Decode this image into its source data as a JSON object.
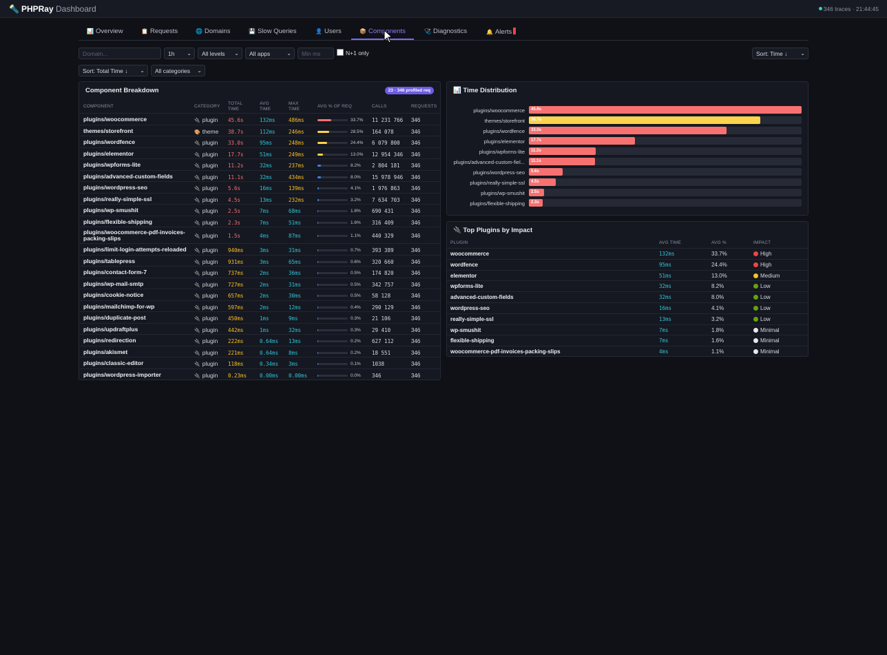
{
  "app": {
    "title": "PHPRay",
    "subtitle": "Dashboard",
    "status": "346 traces · 21:44:45"
  },
  "tabs": [
    {
      "icon": "📊",
      "label": "Overview"
    },
    {
      "icon": "📋",
      "label": "Requests"
    },
    {
      "icon": "🌐",
      "label": "Domains"
    },
    {
      "icon": "💾",
      "label": "Slow Queries"
    },
    {
      "icon": "👤",
      "label": "Users"
    },
    {
      "icon": "📦",
      "label": "Components",
      "active": true
    },
    {
      "icon": "🩺",
      "label": "Diagnostics"
    },
    {
      "icon": "🔔",
      "label": "Alerts"
    }
  ],
  "filters": {
    "domain_placeholder": "Domain...",
    "range": "1h",
    "level": "All levels",
    "apps": "All apps",
    "min_ms_placeholder": "Min ms",
    "n1_label": "N+1 only",
    "sort_time": "Sort: Time ↓",
    "sort_total": "Sort: Total Time ↓",
    "categories": "All categories"
  },
  "breakdown": {
    "title": "Component Breakdown",
    "badge": "23 · 346 profiled req",
    "headers": [
      "COMPONENT",
      "CATEGORY",
      "TOTAL TIME",
      "AVG TIME",
      "MAX TIME",
      "AVG % OF REQ",
      "CALLS",
      "REQUESTS"
    ],
    "rows": [
      {
        "name": "plugins/woocommerce",
        "cat_icon": "🔌",
        "category": "plugin",
        "total": "45.6s",
        "avg": "132ms",
        "max": "486ms",
        "pct": "33.7%",
        "pct_value": 33.7,
        "calls": "11 231 766",
        "requests": "346"
      },
      {
        "name": "themes/storefront",
        "cat_icon": "🎨",
        "category": "theme",
        "total": "38.7s",
        "avg": "112ms",
        "max": "246ms",
        "pct": "28.5%",
        "pct_value": 28.5,
        "calls": "164 078",
        "requests": "346"
      },
      {
        "name": "plugins/wordfence",
        "cat_icon": "🔌",
        "category": "plugin",
        "total": "33.0s",
        "avg": "95ms",
        "max": "248ms",
        "pct": "24.4%",
        "pct_value": 24.4,
        "calls": "6 079 800",
        "requests": "346"
      },
      {
        "name": "plugins/elementor",
        "cat_icon": "🔌",
        "category": "plugin",
        "total": "17.7s",
        "avg": "51ms",
        "max": "249ms",
        "pct": "13.0%",
        "pct_value": 13.0,
        "calls": "12 954 346",
        "requests": "346"
      },
      {
        "name": "plugins/wpforms-lite",
        "cat_icon": "🔌",
        "category": "plugin",
        "total": "11.2s",
        "avg": "32ms",
        "max": "237ms",
        "pct": "8.2%",
        "pct_value": 8.2,
        "calls": "2 804 181",
        "requests": "346"
      },
      {
        "name": "plugins/advanced-custom-fields",
        "cat_icon": "🔌",
        "category": "plugin",
        "total": "11.1s",
        "avg": "32ms",
        "max": "434ms",
        "pct": "8.0%",
        "pct_value": 8.0,
        "calls": "15 978 946",
        "requests": "346"
      },
      {
        "name": "plugins/wordpress-seo",
        "cat_icon": "🔌",
        "category": "plugin",
        "total": "5.6s",
        "avg": "16ms",
        "max": "139ms",
        "pct": "4.1%",
        "pct_value": 4.1,
        "calls": "1 976 863",
        "requests": "346"
      },
      {
        "name": "plugins/really-simple-ssl",
        "cat_icon": "🔌",
        "category": "plugin",
        "total": "4.5s",
        "avg": "13ms",
        "max": "232ms",
        "pct": "3.2%",
        "pct_value": 3.2,
        "calls": "7 634 703",
        "requests": "346"
      },
      {
        "name": "plugins/wp-smushit",
        "cat_icon": "🔌",
        "category": "plugin",
        "total": "2.5s",
        "avg": "7ms",
        "max": "68ms",
        "pct": "1.8%",
        "pct_value": 1.8,
        "calls": "690 431",
        "requests": "346"
      },
      {
        "name": "plugins/flexible-shipping",
        "cat_icon": "🔌",
        "category": "plugin",
        "total": "2.3s",
        "avg": "7ms",
        "max": "51ms",
        "pct": "1.6%",
        "pct_value": 1.6,
        "calls": "316 409",
        "requests": "346"
      },
      {
        "name": "plugins/woocommerce-pdf-invoices-packing-slips",
        "cat_icon": "🔌",
        "category": "plugin",
        "total": "1.5s",
        "avg": "4ms",
        "max": "87ms",
        "pct": "1.1%",
        "pct_value": 1.1,
        "calls": "440 329",
        "requests": "346"
      },
      {
        "name": "plugins/limit-login-attempts-reloaded",
        "cat_icon": "🔌",
        "category": "plugin",
        "total": "940ms",
        "avg": "3ms",
        "max": "31ms",
        "pct": "0.7%",
        "pct_value": 0.7,
        "calls": "393 389",
        "requests": "346"
      },
      {
        "name": "plugins/tablepress",
        "cat_icon": "🔌",
        "category": "plugin",
        "total": "931ms",
        "avg": "3ms",
        "max": "65ms",
        "pct": "0.6%",
        "pct_value": 0.6,
        "calls": "320 660",
        "requests": "346"
      },
      {
        "name": "plugins/contact-form-7",
        "cat_icon": "🔌",
        "category": "plugin",
        "total": "737ms",
        "avg": "2ms",
        "max": "36ms",
        "pct": "0.5%",
        "pct_value": 0.5,
        "calls": "174 820",
        "requests": "346"
      },
      {
        "name": "plugins/wp-mail-smtp",
        "cat_icon": "🔌",
        "category": "plugin",
        "total": "727ms",
        "avg": "2ms",
        "max": "31ms",
        "pct": "0.5%",
        "pct_value": 0.5,
        "calls": "342 757",
        "requests": "346"
      },
      {
        "name": "plugins/cookie-notice",
        "cat_icon": "🔌",
        "category": "plugin",
        "total": "657ms",
        "avg": "2ms",
        "max": "30ms",
        "pct": "0.5%",
        "pct_value": 0.5,
        "calls": "58 128",
        "requests": "346"
      },
      {
        "name": "plugins/mailchimp-for-wp",
        "cat_icon": "🔌",
        "category": "plugin",
        "total": "597ms",
        "avg": "2ms",
        "max": "12ms",
        "pct": "0.4%",
        "pct_value": 0.4,
        "calls": "290 129",
        "requests": "346"
      },
      {
        "name": "plugins/duplicate-post",
        "cat_icon": "🔌",
        "category": "plugin",
        "total": "450ms",
        "avg": "1ms",
        "max": "9ms",
        "pct": "0.3%",
        "pct_value": 0.3,
        "calls": "21 106",
        "requests": "346"
      },
      {
        "name": "plugins/updraftplus",
        "cat_icon": "🔌",
        "category": "plugin",
        "total": "442ms",
        "avg": "1ms",
        "max": "32ms",
        "pct": "0.3%",
        "pct_value": 0.3,
        "calls": "29 410",
        "requests": "346"
      },
      {
        "name": "plugins/redirection",
        "cat_icon": "🔌",
        "category": "plugin",
        "total": "222ms",
        "avg": "0.64ms",
        "max": "13ms",
        "pct": "0.2%",
        "pct_value": 0.2,
        "calls": "627 112",
        "requests": "346"
      },
      {
        "name": "plugins/akismet",
        "cat_icon": "🔌",
        "category": "plugin",
        "total": "221ms",
        "avg": "0.64ms",
        "max": "8ms",
        "pct": "0.2%",
        "pct_value": 0.2,
        "calls": "18 551",
        "requests": "346"
      },
      {
        "name": "plugins/classic-editor",
        "cat_icon": "🔌",
        "category": "plugin",
        "total": "118ms",
        "avg": "0.34ms",
        "max": "3ms",
        "pct": "0.1%",
        "pct_value": 0.1,
        "calls": "1038",
        "requests": "346"
      },
      {
        "name": "plugins/wordpress-importer",
        "cat_icon": "🔌",
        "category": "plugin",
        "total": "0.23ms",
        "avg": "0.00ms",
        "max": "0.00ms",
        "pct": "0.0%",
        "pct_value": 0.0,
        "calls": "346",
        "requests": "346"
      }
    ]
  },
  "time_distribution": {
    "icon": "📊",
    "title": "Time Distribution",
    "max_seconds": 45.6,
    "items": [
      {
        "label": "plugins/woocommerce",
        "value": "45.6s",
        "seconds": 45.6,
        "color": "#f87171"
      },
      {
        "label": "themes/storefront",
        "value": "38.7s",
        "seconds": 38.7,
        "color": "#fcd34d"
      },
      {
        "label": "plugins/wordfence",
        "value": "33.0s",
        "seconds": 33.0,
        "color": "#f87171"
      },
      {
        "label": "plugins/elementor",
        "value": "17.7s",
        "seconds": 17.7,
        "color": "#f87171"
      },
      {
        "label": "plugins/wpforms-lite",
        "value": "11.2s",
        "seconds": 11.2,
        "color": "#f87171"
      },
      {
        "label": "plugins/advanced-custom-fiel...",
        "value": "11.1s",
        "seconds": 11.1,
        "color": "#f87171"
      },
      {
        "label": "plugins/wordpress-seo",
        "value": "5.6s",
        "seconds": 5.6,
        "color": "#f87171"
      },
      {
        "label": "plugins/really-simple-ssl",
        "value": "4.5s",
        "seconds": 4.5,
        "color": "#f87171"
      },
      {
        "label": "plugins/wp-smushit",
        "value": "2.5s",
        "seconds": 2.5,
        "color": "#f87171"
      },
      {
        "label": "plugins/flexible-shipping",
        "value": "2.3s",
        "seconds": 2.3,
        "color": "#f87171"
      }
    ]
  },
  "top_plugins": {
    "icon": "🔌",
    "title": "Top Plugins by Impact",
    "headers": [
      "PLUGIN",
      "AVG TIME",
      "AVG %",
      "IMPACT"
    ],
    "rows": [
      {
        "name": "woocommerce",
        "avg": "132ms",
        "pct": "33.7%",
        "impact": "High",
        "color": "#ef4444"
      },
      {
        "name": "wordfence",
        "avg": "95ms",
        "pct": "24.4%",
        "impact": "High",
        "color": "#ef4444"
      },
      {
        "name": "elementor",
        "avg": "51ms",
        "pct": "13.0%",
        "impact": "Medium",
        "color": "#fbbf24"
      },
      {
        "name": "wpforms-lite",
        "avg": "32ms",
        "pct": "8.2%",
        "impact": "Low",
        "color": "#65a30d"
      },
      {
        "name": "advanced-custom-fields",
        "avg": "32ms",
        "pct": "8.0%",
        "impact": "Low",
        "color": "#65a30d"
      },
      {
        "name": "wordpress-seo",
        "avg": "16ms",
        "pct": "4.1%",
        "impact": "Low",
        "color": "#65a30d"
      },
      {
        "name": "really-simple-ssl",
        "avg": "13ms",
        "pct": "3.2%",
        "impact": "Low",
        "color": "#65a30d"
      },
      {
        "name": "wp-smushit",
        "avg": "7ms",
        "pct": "1.8%",
        "impact": "Minimal",
        "color": "#e5e7eb"
      },
      {
        "name": "flexible-shipping",
        "avg": "7ms",
        "pct": "1.6%",
        "impact": "Minimal",
        "color": "#e5e7eb"
      },
      {
        "name": "woocommerce-pdf-invoices-packing-slips",
        "avg": "4ms",
        "pct": "1.1%",
        "impact": "Minimal",
        "color": "#e5e7eb"
      }
    ]
  },
  "colors": {
    "accent": "#7c6cf0",
    "danger": "#f87171",
    "warn": "#fcd34d",
    "cyan": "#2ec4d6"
  }
}
